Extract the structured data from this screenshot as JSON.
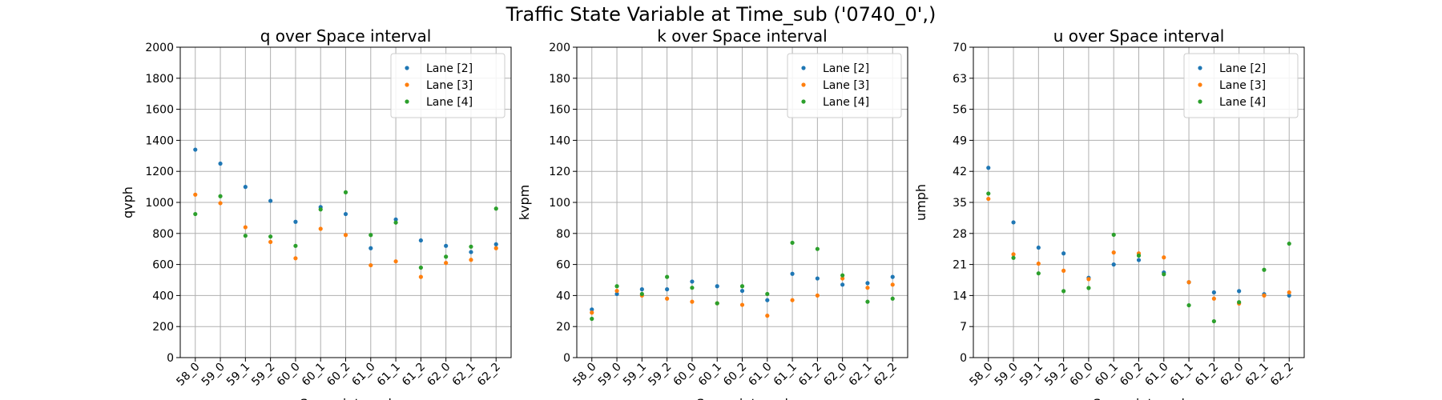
{
  "figure": {
    "title": "Traffic State Variable at Time_sub ('0740_0',)"
  },
  "colors": {
    "Lane [2]": "#1f77b4",
    "Lane [3]": "#ff7f0e",
    "Lane [4]": "#2ca02c"
  },
  "chart_data": [
    {
      "type": "scatter",
      "title": "q over Space interval",
      "xlabel": "Space interval",
      "ylabel": "qvph",
      "ylim": [
        0,
        2000
      ],
      "yticks": [
        "0",
        "200",
        "400",
        "600",
        "800",
        "1000",
        "1200",
        "1400",
        "1600",
        "1800",
        "2000"
      ],
      "categories": [
        "58_0",
        "59_0",
        "59_1",
        "59_2",
        "60_0",
        "60_1",
        "60_2",
        "61_0",
        "61_1",
        "61_2",
        "62_0",
        "62_1",
        "62_2"
      ],
      "grid": true,
      "legend": "top-right",
      "series": [
        {
          "name": "Lane [2]",
          "values": [
            1340,
            1250,
            1100,
            1010,
            875,
            970,
            925,
            705,
            890,
            755,
            720,
            680,
            730
          ]
        },
        {
          "name": "Lane [3]",
          "values": [
            1050,
            995,
            840,
            745,
            640,
            830,
            790,
            595,
            620,
            520,
            610,
            630,
            705
          ]
        },
        {
          "name": "Lane [4]",
          "values": [
            925,
            1040,
            785,
            780,
            720,
            955,
            1065,
            790,
            870,
            580,
            650,
            715,
            960
          ]
        }
      ]
    },
    {
      "type": "scatter",
      "title": "k over Space interval",
      "xlabel": "Space interval",
      "ylabel": "kvpm",
      "ylim": [
        0,
        200
      ],
      "yticks": [
        "0",
        "20",
        "40",
        "60",
        "80",
        "100",
        "120",
        "140",
        "160",
        "180",
        "200"
      ],
      "categories": [
        "58_0",
        "59_0",
        "59_1",
        "59_2",
        "60_0",
        "60_1",
        "60_2",
        "61_0",
        "61_1",
        "61_2",
        "62_0",
        "62_1",
        "62_2"
      ],
      "grid": true,
      "legend": "top-right",
      "series": [
        {
          "name": "Lane [2]",
          "values": [
            31,
            41,
            44,
            44,
            49,
            46,
            43,
            37,
            54,
            51,
            47,
            48,
            52
          ]
        },
        {
          "name": "Lane [3]",
          "values": [
            29,
            43,
            40,
            38,
            36,
            35,
            34,
            27,
            37,
            40,
            51,
            45,
            47
          ]
        },
        {
          "name": "Lane [4]",
          "values": [
            25,
            46,
            41,
            52,
            45,
            35,
            46,
            41,
            74,
            70,
            53,
            36,
            38
          ]
        }
      ]
    },
    {
      "type": "scatter",
      "title": "u over Space interval",
      "xlabel": "Space interval",
      "ylabel": "umph",
      "ylim": [
        0,
        70
      ],
      "yticks": [
        "0",
        "7",
        "14",
        "21",
        "28",
        "35",
        "42",
        "49",
        "56",
        "63",
        "70"
      ],
      "categories": [
        "58_0",
        "59_0",
        "59_1",
        "59_2",
        "60_0",
        "60_1",
        "60_2",
        "61_0",
        "61_1",
        "61_2",
        "62_0",
        "62_1",
        "62_2"
      ],
      "grid": true,
      "legend": "top-right",
      "series": [
        {
          "name": "Lane [2]",
          "values": [
            42.8,
            30.5,
            24.8,
            23.5,
            18,
            21,
            22,
            19.2,
            17,
            14.7,
            15,
            14.3,
            14
          ]
        },
        {
          "name": "Lane [3]",
          "values": [
            35.8,
            23.3,
            21.2,
            19.6,
            17.7,
            23.7,
            23.5,
            22.6,
            17,
            13.3,
            12.2,
            14,
            14.7
          ]
        },
        {
          "name": "Lane [4]",
          "values": [
            37,
            22.5,
            19,
            15,
            15.7,
            27.7,
            23,
            18.8,
            11.8,
            8.2,
            12.5,
            19.8,
            25.7
          ]
        }
      ]
    }
  ]
}
